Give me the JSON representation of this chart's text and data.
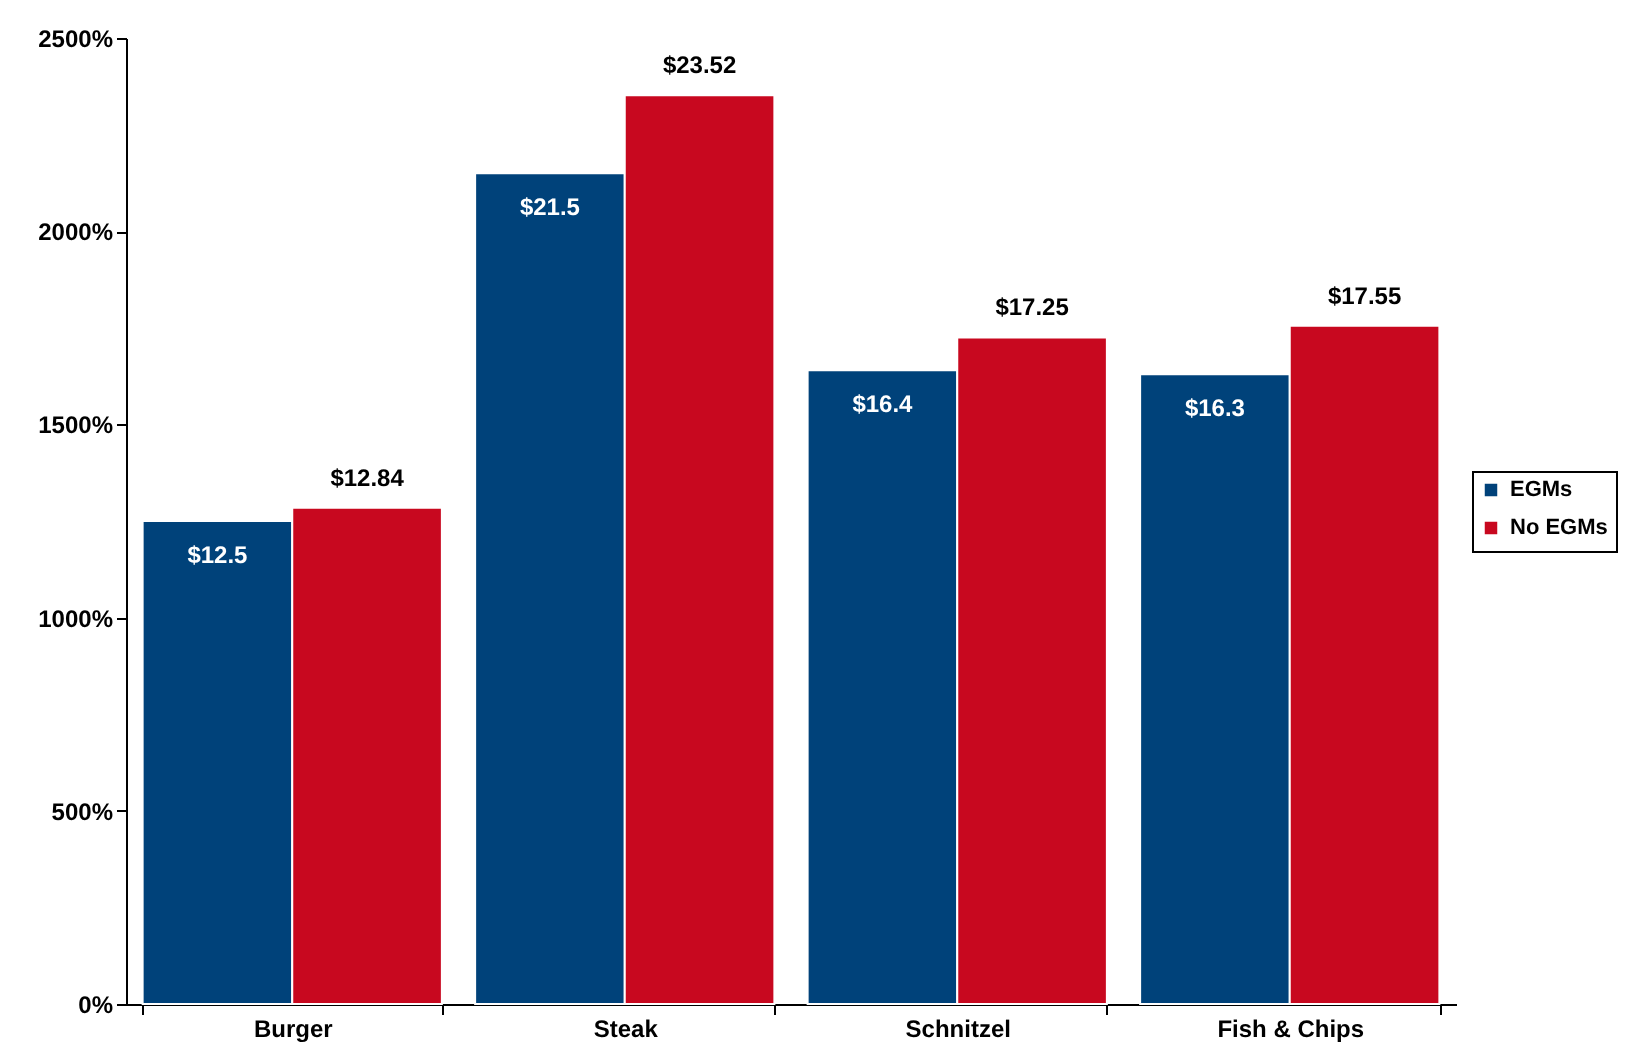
{
  "chart_data": {
    "type": "bar",
    "categories": [
      "Burger",
      "Steak",
      "Schnitzel",
      "Fish & Chips"
    ],
    "series": [
      {
        "name": "EGMs",
        "color": "#00427a",
        "values": [
          12.5,
          21.5,
          16.4,
          16.3
        ],
        "value_labels": [
          "$12.5",
          "$21.5",
          "$16.4",
          "$16.3"
        ]
      },
      {
        "name": "No EGMs",
        "color": "#c8081f",
        "values": [
          12.84,
          23.52,
          17.25,
          17.55
        ],
        "value_labels": [
          "$12.84",
          "$23.52",
          "$17.25",
          "$17.55"
        ]
      }
    ],
    "ylim": [
      0,
      25
    ],
    "yticks": [
      {
        "value": 0,
        "label": "0%"
      },
      {
        "value": 5,
        "label": "500%"
      },
      {
        "value": 10,
        "label": "1000%"
      },
      {
        "value": 15,
        "label": "1500%"
      },
      {
        "value": 20,
        "label": "2000%"
      },
      {
        "value": 25,
        "label": "2500%"
      }
    ],
    "grid": false,
    "legend": "right"
  }
}
